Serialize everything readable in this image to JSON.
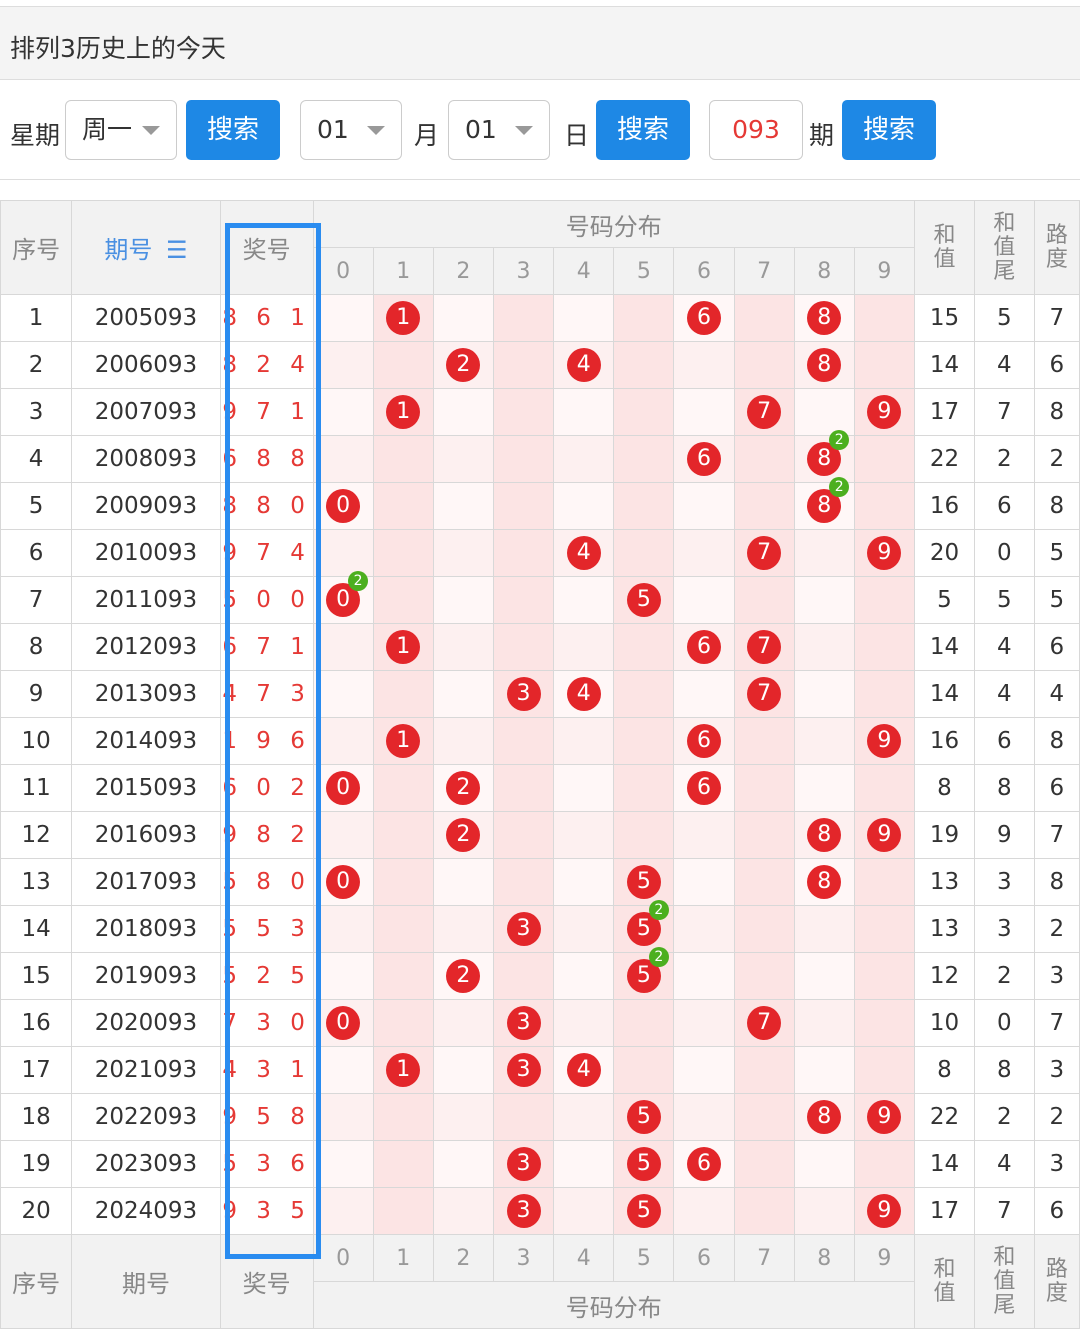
{
  "title": "排列3历史上的今天",
  "search": {
    "weekday_label": "星期",
    "weekday_value": "周一",
    "search_label": "搜索",
    "month_value": "01",
    "month_label": "月",
    "day_value": "01",
    "day_label": "日",
    "issue_value": "093",
    "issue_label": "期"
  },
  "table": {
    "headers": {
      "seq": "序号",
      "period": "期号",
      "period_sort_icon": "sort-icon",
      "prize": "奖号",
      "distribution": "号码分布",
      "sum": "和值",
      "sum_tail": "和值尾",
      "road": "路度"
    },
    "digits": [
      "0",
      "1",
      "2",
      "3",
      "4",
      "5",
      "6",
      "7",
      "8",
      "9"
    ],
    "rows": [
      {
        "seq": "1",
        "period": "2005093",
        "prize": "8 6 1",
        "balls": [
          1,
          6,
          8
        ],
        "repeat": [],
        "sum": "15",
        "tail": "5",
        "road": "7"
      },
      {
        "seq": "2",
        "period": "2006093",
        "prize": "8 2 4",
        "balls": [
          2,
          4,
          8
        ],
        "repeat": [],
        "sum": "14",
        "tail": "4",
        "road": "6"
      },
      {
        "seq": "3",
        "period": "2007093",
        "prize": "9 7 1",
        "balls": [
          1,
          7,
          9
        ],
        "repeat": [],
        "sum": "17",
        "tail": "7",
        "road": "8"
      },
      {
        "seq": "4",
        "period": "2008093",
        "prize": "6 8 8",
        "balls": [
          6,
          8
        ],
        "repeat": [
          8
        ],
        "sum": "22",
        "tail": "2",
        "road": "2"
      },
      {
        "seq": "5",
        "period": "2009093",
        "prize": "8 8 0",
        "balls": [
          0,
          8
        ],
        "repeat": [
          8
        ],
        "sum": "16",
        "tail": "6",
        "road": "8"
      },
      {
        "seq": "6",
        "period": "2010093",
        "prize": "9 7 4",
        "balls": [
          4,
          7,
          9
        ],
        "repeat": [],
        "sum": "20",
        "tail": "0",
        "road": "5"
      },
      {
        "seq": "7",
        "period": "2011093",
        "prize": "5 0 0",
        "balls": [
          0,
          5
        ],
        "repeat": [
          0
        ],
        "sum": "5",
        "tail": "5",
        "road": "5"
      },
      {
        "seq": "8",
        "period": "2012093",
        "prize": "6 7 1",
        "balls": [
          1,
          6,
          7
        ],
        "repeat": [],
        "sum": "14",
        "tail": "4",
        "road": "6"
      },
      {
        "seq": "9",
        "period": "2013093",
        "prize": "4 7 3",
        "balls": [
          3,
          4,
          7
        ],
        "repeat": [],
        "sum": "14",
        "tail": "4",
        "road": "4"
      },
      {
        "seq": "10",
        "period": "2014093",
        "prize": "1 9 6",
        "balls": [
          1,
          6,
          9
        ],
        "repeat": [],
        "sum": "16",
        "tail": "6",
        "road": "8"
      },
      {
        "seq": "11",
        "period": "2015093",
        "prize": "6 0 2",
        "balls": [
          0,
          2,
          6
        ],
        "repeat": [],
        "sum": "8",
        "tail": "8",
        "road": "6"
      },
      {
        "seq": "12",
        "period": "2016093",
        "prize": "9 8 2",
        "balls": [
          2,
          8,
          9
        ],
        "repeat": [],
        "sum": "19",
        "tail": "9",
        "road": "7"
      },
      {
        "seq": "13",
        "period": "2017093",
        "prize": "5 8 0",
        "balls": [
          0,
          5,
          8
        ],
        "repeat": [],
        "sum": "13",
        "tail": "3",
        "road": "8"
      },
      {
        "seq": "14",
        "period": "2018093",
        "prize": "5 5 3",
        "balls": [
          3,
          5
        ],
        "repeat": [
          5
        ],
        "sum": "13",
        "tail": "3",
        "road": "2"
      },
      {
        "seq": "15",
        "period": "2019093",
        "prize": "5 2 5",
        "balls": [
          2,
          5
        ],
        "repeat": [
          5
        ],
        "sum": "12",
        "tail": "2",
        "road": "3"
      },
      {
        "seq": "16",
        "period": "2020093",
        "prize": "7 3 0",
        "balls": [
          0,
          3,
          7
        ],
        "repeat": [],
        "sum": "10",
        "tail": "0",
        "road": "7"
      },
      {
        "seq": "17",
        "period": "2021093",
        "prize": "4 3 1",
        "balls": [
          1,
          3,
          4
        ],
        "repeat": [],
        "sum": "8",
        "tail": "8",
        "road": "3"
      },
      {
        "seq": "18",
        "period": "2022093",
        "prize": "9 5 8",
        "balls": [
          5,
          8,
          9
        ],
        "repeat": [],
        "sum": "22",
        "tail": "2",
        "road": "2"
      },
      {
        "seq": "19",
        "period": "2023093",
        "prize": "5 3 6",
        "balls": [
          3,
          5,
          6
        ],
        "repeat": [],
        "sum": "14",
        "tail": "4",
        "road": "3"
      },
      {
        "seq": "20",
        "period": "2024093",
        "prize": "9 3 5",
        "balls": [
          3,
          5,
          9
        ],
        "repeat": [],
        "sum": "17",
        "tail": "7",
        "road": "6"
      }
    ],
    "repeat_badge": "2"
  },
  "colors": {
    "accent_blue": "#1e88e5",
    "ball_red": "#e3262a",
    "repeat_green": "#4caf1f",
    "highlight_box": "#2a8cf0"
  }
}
